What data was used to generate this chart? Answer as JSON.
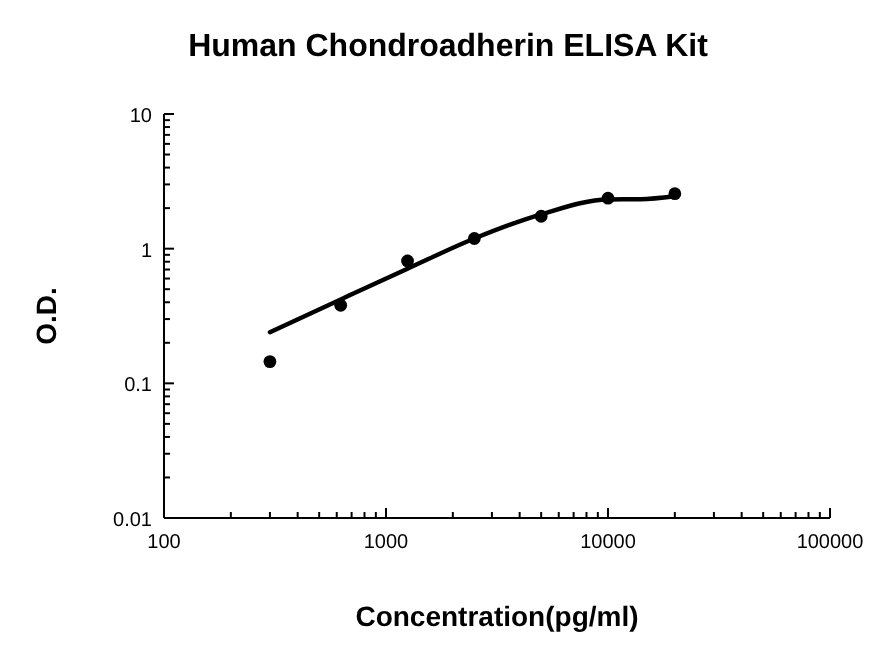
{
  "chart_data": {
    "type": "scatter",
    "title": "Human Chondroadherin ELISA Kit",
    "xlabel": "Concentration(pg/ml)",
    "ylabel": "O.D.",
    "log": "xy",
    "grid": false,
    "xlim": [
      100,
      100000
    ],
    "ylim": [
      0.01,
      10
    ],
    "xticks": [
      100,
      {
        "value": 200,
        "label": null
      },
      {
        "value": 300,
        "label": null
      },
      {
        "value": 400,
        "label": null
      },
      {
        "value": 500,
        "label": null
      },
      {
        "value": 600,
        "label": null
      },
      {
        "value": 700,
        "label": null
      },
      {
        "value": 800,
        "label": null
      },
      {
        "value": 900,
        "label": null
      },
      1000,
      {
        "value": 2000,
        "label": null
      },
      {
        "value": 3000,
        "label": null
      },
      {
        "value": 4000,
        "label": null
      },
      {
        "value": 5000,
        "label": null
      },
      {
        "value": 6000,
        "label": null
      },
      {
        "value": 7000,
        "label": null
      },
      {
        "value": 8000,
        "label": null
      },
      {
        "value": 9000,
        "label": null
      },
      10000,
      {
        "value": 20000,
        "label": null
      },
      {
        "value": 30000,
        "label": null
      },
      {
        "value": 40000,
        "label": null
      },
      {
        "value": 50000,
        "label": null
      },
      {
        "value": 60000,
        "label": null
      },
      {
        "value": 70000,
        "label": null
      },
      {
        "value": 80000,
        "label": null
      },
      {
        "value": 90000,
        "label": null
      },
      100000
    ],
    "yticks": [
      0.01,
      {
        "value": 0.02,
        "label": null
      },
      {
        "value": 0.03,
        "label": null
      },
      {
        "value": 0.04,
        "label": null
      },
      {
        "value": 0.05,
        "label": null
      },
      {
        "value": 0.06,
        "label": null
      },
      {
        "value": 0.07,
        "label": null
      },
      {
        "value": 0.08,
        "label": null
      },
      {
        "value": 0.09,
        "label": null
      },
      0.1,
      {
        "value": 0.2,
        "label": null
      },
      {
        "value": 0.3,
        "label": null
      },
      {
        "value": 0.4,
        "label": null
      },
      {
        "value": 0.5,
        "label": null
      },
      {
        "value": 0.6,
        "label": null
      },
      {
        "value": 0.7,
        "label": null
      },
      {
        "value": 0.8,
        "label": null
      },
      {
        "value": 0.9,
        "label": null
      },
      1,
      {
        "value": 2,
        "label": null
      },
      {
        "value": 3,
        "label": null
      },
      {
        "value": 4,
        "label": null
      },
      {
        "value": 5,
        "label": null
      },
      {
        "value": 6,
        "label": null
      },
      {
        "value": 7,
        "label": null
      },
      {
        "value": 8,
        "label": null
      },
      {
        "value": 9,
        "label": null
      },
      10
    ],
    "series": [
      {
        "color": "#000000",
        "marker": "circle",
        "x": [
          300,
          625,
          1250,
          2500,
          5000,
          10000,
          20000
        ],
        "values": [
          0.145,
          0.38,
          0.81,
          1.19,
          1.74,
          2.37,
          2.56
        ]
      },
      {
        "type": "line",
        "color": "#000000",
        "marker": "none",
        "line_style": "solid",
        "x": [
          300,
          625,
          1250,
          2500,
          5000,
          10000,
          14000,
          20000
        ],
        "values": [
          0.24,
          0.42,
          0.71,
          1.19,
          1.8,
          2.32,
          2.33,
          2.45
        ]
      }
    ]
  }
}
